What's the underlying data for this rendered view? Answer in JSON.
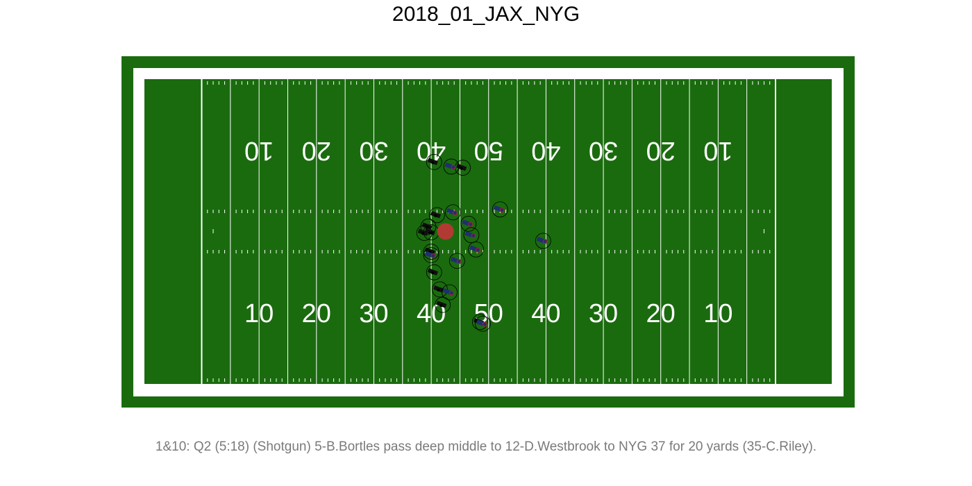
{
  "title": "2018_01_JAX_NYG",
  "description": "1&10: Q2 (5:18) (Shotgun) 5-B.Bortles pass deep middle to 12-D.Westbrook to NYG 37 for 20 yards (35-C.Riley).",
  "colors": {
    "turf": "#1a6b0e",
    "lines": "#ffffff",
    "ball": "#b13a33",
    "offense_team": "#101010",
    "defense_team": "#1f2f70",
    "defense_accent": "#b01f2f"
  },
  "field": {
    "yard_numbers_bottom": [
      "10",
      "20",
      "30",
      "40",
      "50",
      "40",
      "30",
      "20",
      "10"
    ],
    "yard_numbers_top": [
      "10",
      "20",
      "30",
      "40",
      "50",
      "40",
      "30",
      "20",
      "10"
    ]
  },
  "play": {
    "ball": {
      "yard": 42.5,
      "lateral": 26.65
    },
    "offense": [
      {
        "yard": 40.5,
        "lateral": 38.8
      },
      {
        "yard": 45.5,
        "lateral": 37.8
      },
      {
        "yard": 40.0,
        "lateral": 26.5
      },
      {
        "yard": 39.5,
        "lateral": 27.5
      },
      {
        "yard": 40.0,
        "lateral": 23.1
      },
      {
        "yard": 38.8,
        "lateral": 26.4
      },
      {
        "yard": 40.5,
        "lateral": 19.5
      },
      {
        "yard": 41.5,
        "lateral": 16.5
      },
      {
        "yard": 42.0,
        "lateral": 13.8
      },
      {
        "yard": 48.5,
        "lateral": 10.8
      },
      {
        "yard": 41.0,
        "lateral": 29.5
      }
    ],
    "defense": [
      {
        "yard": 43.5,
        "lateral": 38.0
      },
      {
        "yard": 52.0,
        "lateral": 30.5
      },
      {
        "yard": 47.0,
        "lateral": 26.0
      },
      {
        "yard": 47.8,
        "lateral": 23.5
      },
      {
        "yard": 44.5,
        "lateral": 21.5
      },
      {
        "yard": 43.2,
        "lateral": 16.0
      },
      {
        "yard": 43.8,
        "lateral": 30.0
      },
      {
        "yard": 59.5,
        "lateral": 25.0
      },
      {
        "yard": 49.0,
        "lateral": 10.5
      },
      {
        "yard": 46.5,
        "lateral": 28.0
      },
      {
        "yard": 40.0,
        "lateral": 22.5
      }
    ]
  }
}
